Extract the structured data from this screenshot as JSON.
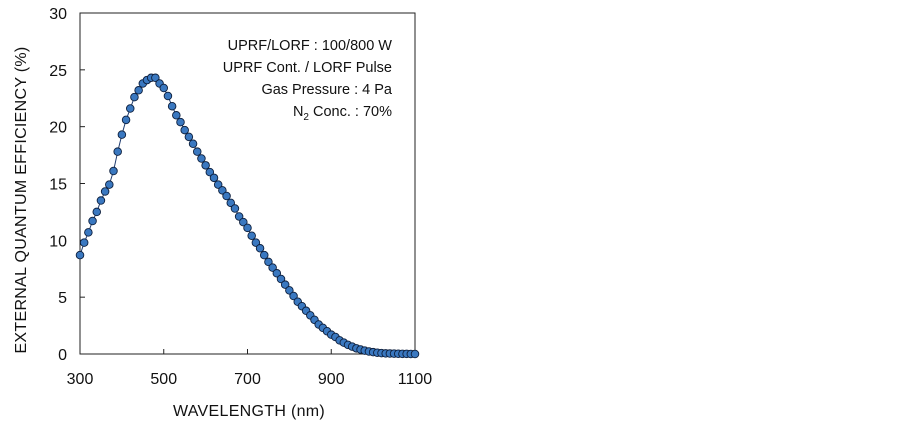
{
  "chart_data": {
    "type": "scatter",
    "xlabel": "WAVELENGTH (nm)",
    "ylabel": "EXTERNAL QUANTUM EFFICIENCY (%)",
    "xlim": [
      300,
      1100
    ],
    "ylim": [
      0,
      30
    ],
    "xticks": [
      "300",
      "500",
      "700",
      "900",
      "1100"
    ],
    "yticks": [
      "0",
      "5",
      "10",
      "15",
      "20",
      "25",
      "30"
    ],
    "grid": false,
    "marker_color": "#3a78c0",
    "line_color": "#1f3b6e",
    "annotations": [
      "UPRF/LORF : 100/800 W",
      "UPRF Cont. / LORF Pulse",
      "Gas Pressure : 4 Pa",
      "N",
      "2",
      " Conc. : 70%"
    ],
    "series": [
      {
        "x": [
          300,
          310,
          320,
          330,
          340,
          350,
          360,
          370,
          380,
          390,
          400,
          410,
          420,
          430,
          440,
          450,
          460,
          470,
          480,
          490,
          500,
          510,
          520,
          530,
          540,
          550,
          560,
          570,
          580,
          590,
          600,
          610,
          620,
          630,
          640,
          650,
          660,
          670,
          680,
          690,
          700,
          710,
          720,
          730,
          740,
          750,
          760,
          770,
          780,
          790,
          800,
          810,
          820,
          830,
          840,
          850,
          860,
          870,
          880,
          890,
          900,
          910,
          920,
          930,
          940,
          950,
          960,
          970,
          980,
          990,
          1000,
          1010,
          1020,
          1030,
          1040,
          1050,
          1060,
          1070,
          1080,
          1090,
          1100
        ],
        "y": [
          8.7,
          9.8,
          10.7,
          11.7,
          12.5,
          13.5,
          14.3,
          14.9,
          16.1,
          17.8,
          19.3,
          20.6,
          21.6,
          22.6,
          23.2,
          23.8,
          24.1,
          24.3,
          24.3,
          23.8,
          23.4,
          22.7,
          21.8,
          21.0,
          20.4,
          19.7,
          19.1,
          18.5,
          17.8,
          17.2,
          16.6,
          16.0,
          15.5,
          14.9,
          14.4,
          13.9,
          13.3,
          12.8,
          12.1,
          11.6,
          11.1,
          10.4,
          9.8,
          9.3,
          8.7,
          8.1,
          7.6,
          7.1,
          6.6,
          6.1,
          5.6,
          5.1,
          4.6,
          4.2,
          3.8,
          3.4,
          3.0,
          2.6,
          2.3,
          2.0,
          1.7,
          1.5,
          1.2,
          1.0,
          0.8,
          0.65,
          0.5,
          0.4,
          0.3,
          0.22,
          0.16,
          0.11,
          0.08,
          0.05,
          0.04,
          0.03,
          0.02,
          0.01,
          0.01,
          0.0,
          0.0
        ]
      }
    ]
  }
}
